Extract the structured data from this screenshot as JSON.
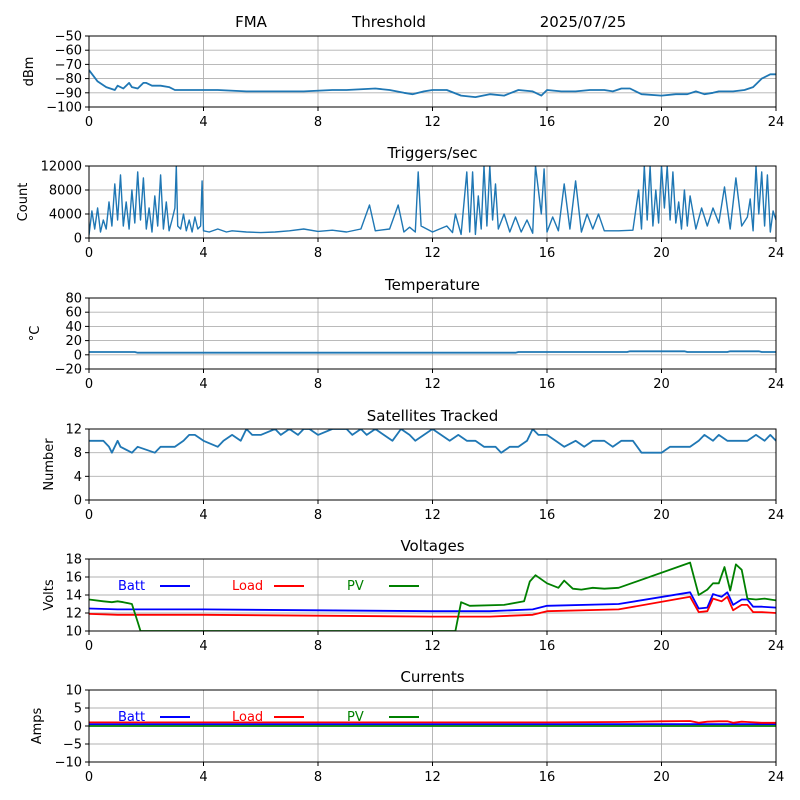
{
  "header": {
    "station": "FMA",
    "mode": "Threshold",
    "date": "2025/07/25"
  },
  "colors": {
    "default": "#1f77b4",
    "batt": "#0000ff",
    "load": "#ff0000",
    "pv": "#008000",
    "grid": "#b0b0b0"
  },
  "chart_data": [
    {
      "type": "line",
      "title": "",
      "ylabel": "dBm",
      "xlim": [
        0,
        24
      ],
      "ylim": [
        -100,
        -50
      ],
      "xticks": [
        "0",
        "4",
        "8",
        "12",
        "16",
        "20",
        "24"
      ],
      "yticks": [
        "−100",
        "−90",
        "−80",
        "−70",
        "−60",
        "−50"
      ],
      "grid": true,
      "series": [
        {
          "color": "default",
          "x": [
            0,
            0.3,
            0.6,
            0.9,
            1.0,
            1.2,
            1.4,
            1.5,
            1.7,
            1.9,
            2.0,
            2.2,
            2.5,
            2.8,
            3.0,
            3.5,
            4.5,
            5.5,
            6.5,
            7.5,
            8.5,
            9.0,
            10.0,
            10.5,
            11.0,
            11.3,
            11.7,
            12.0,
            12.5,
            13.0,
            13.5,
            14.0,
            14.5,
            15.0,
            15.5,
            15.8,
            16.0,
            16.5,
            17.0,
            17.5,
            18.0,
            18.3,
            18.6,
            18.9,
            19.3,
            20.0,
            20.5,
            20.9,
            21.2,
            21.5,
            21.8,
            22.0,
            22.5,
            22.9,
            23.2,
            23.5,
            23.8,
            24.0
          ],
          "y": [
            -74,
            -82,
            -86,
            -88,
            -85,
            -87,
            -83,
            -86,
            -87,
            -83,
            -83,
            -85,
            -85,
            -86,
            -88,
            -88,
            -88,
            -89,
            -89,
            -89,
            -88,
            -88,
            -87,
            -88,
            -90,
            -91,
            -89,
            -88,
            -88,
            -92,
            -93,
            -91,
            -92,
            -88,
            -89,
            -92,
            -88,
            -89,
            -89,
            -88,
            -88,
            -89,
            -87,
            -87,
            -91,
            -92,
            -91,
            -91,
            -89,
            -91,
            -90,
            -89,
            -89,
            -88,
            -86,
            -80,
            -77,
            -77
          ]
        }
      ]
    },
    {
      "type": "line",
      "title": "Triggers/sec",
      "ylabel": "Count",
      "xlim": [
        0,
        24
      ],
      "ylim": [
        0,
        12000
      ],
      "xticks": [
        "0",
        "4",
        "8",
        "12",
        "16",
        "20",
        "24"
      ],
      "yticks": [
        "0",
        "4000",
        "8000",
        "12000"
      ],
      "grid": true,
      "series": [
        {
          "color": "default",
          "x": [
            0,
            0.1,
            0.2,
            0.3,
            0.4,
            0.5,
            0.6,
            0.7,
            0.8,
            0.9,
            1.0,
            1.1,
            1.2,
            1.3,
            1.4,
            1.5,
            1.6,
            1.7,
            1.8,
            1.9,
            2.0,
            2.1,
            2.2,
            2.3,
            2.4,
            2.5,
            2.6,
            2.7,
            2.8,
            2.9,
            3.0,
            3.05,
            3.1,
            3.2,
            3.3,
            3.4,
            3.5,
            3.6,
            3.7,
            3.8,
            3.9,
            3.95,
            4.0,
            4.2,
            4.5,
            4.8,
            5.0,
            5.5,
            6.0,
            6.5,
            7.0,
            7.5,
            8.0,
            8.5,
            9.0,
            9.5,
            9.8,
            10.0,
            10.5,
            10.8,
            11.0,
            11.2,
            11.4,
            11.5,
            11.6,
            11.8,
            12.0,
            12.5,
            12.7,
            12.8,
            13.0,
            13.2,
            13.3,
            13.4,
            13.5,
            13.6,
            13.7,
            13.8,
            13.9,
            14.0,
            14.1,
            14.2,
            14.3,
            14.5,
            14.7,
            14.9,
            15.1,
            15.3,
            15.5,
            15.6,
            15.8,
            15.9,
            16.0,
            16.2,
            16.4,
            16.6,
            16.8,
            17.0,
            17.2,
            17.4,
            17.6,
            17.8,
            18.0,
            18.5,
            19.0,
            19.2,
            19.3,
            19.4,
            19.5,
            19.6,
            19.7,
            19.8,
            19.9,
            20.0,
            20.1,
            20.2,
            20.3,
            20.4,
            20.5,
            20.6,
            20.7,
            20.8,
            20.9,
            21.0,
            21.2,
            21.4,
            21.6,
            21.8,
            22.0,
            22.2,
            22.4,
            22.6,
            22.8,
            23.0,
            23.1,
            23.2,
            23.3,
            23.4,
            23.5,
            23.6,
            23.7,
            23.8,
            23.9,
            24.0
          ],
          "y": [
            500,
            4500,
            1500,
            5000,
            1000,
            3000,
            1500,
            6000,
            2000,
            9000,
            3000,
            10500,
            2000,
            6000,
            1500,
            8000,
            2500,
            11000,
            3000,
            10000,
            1500,
            5000,
            1000,
            7000,
            2000,
            10500,
            1500,
            6000,
            1200,
            3000,
            5000,
            12000,
            2000,
            1500,
            4000,
            1200,
            3000,
            1000,
            3500,
            1500,
            2000,
            9500,
            1200,
            1000,
            1500,
            1000,
            1200,
            1000,
            900,
            1000,
            1200,
            1500,
            1100,
            1300,
            1000,
            1500,
            5500,
            1200,
            1500,
            5500,
            1000,
            1800,
            1000,
            11000,
            2000,
            1500,
            1000,
            2000,
            900,
            4000,
            600,
            11000,
            1000,
            11000,
            600,
            7000,
            1500,
            12000,
            2000,
            12000,
            3000,
            9000,
            1500,
            4000,
            1000,
            3500,
            1000,
            3000,
            800,
            12000,
            4000,
            11500,
            1000,
            3500,
            1200,
            9000,
            1500,
            9500,
            1000,
            4000,
            1500,
            4000,
            1200,
            1200,
            1300,
            8000,
            1500,
            12000,
            3000,
            12000,
            2000,
            8000,
            2500,
            12000,
            5000,
            12000,
            3000,
            11000,
            2500,
            6000,
            1500,
            8000,
            2000,
            7000,
            1500,
            5000,
            2000,
            5000,
            2500,
            8500,
            1500,
            10000,
            2000,
            3500,
            6500,
            1200,
            12000,
            4000,
            11000,
            2000,
            10500,
            1000,
            4500,
            3000
          ],
          "note": ""
        }
      ]
    },
    {
      "type": "line",
      "title": "Temperature",
      "ylabel": "°C",
      "xlim": [
        0,
        24
      ],
      "ylim": [
        -20,
        80
      ],
      "xticks": [
        "0",
        "4",
        "8",
        "12",
        "16",
        "20",
        "24"
      ],
      "yticks": [
        "−20",
        "0",
        "20",
        "40",
        "60",
        "80"
      ],
      "grid": true,
      "series": [
        {
          "color": "default",
          "x": [
            0,
            1.6,
            1.7,
            14.9,
            15.0,
            18.8,
            18.9,
            20.8,
            20.9,
            22.3,
            22.4,
            23.4,
            23.5,
            24.0
          ],
          "y": [
            4,
            4,
            3,
            3,
            4,
            4,
            5,
            5,
            4,
            4,
            5,
            5,
            4,
            4
          ]
        }
      ]
    },
    {
      "type": "line",
      "title": "Satellites Tracked",
      "ylabel": "Number",
      "xlim": [
        0,
        24
      ],
      "ylim": [
        0,
        12
      ],
      "xticks": [
        "0",
        "4",
        "8",
        "12",
        "16",
        "20",
        "24"
      ],
      "yticks": [
        "0",
        "4",
        "8",
        "12"
      ],
      "grid": true,
      "series": [
        {
          "color": "default",
          "x": [
            0,
            0.5,
            0.7,
            0.8,
            1.0,
            1.1,
            1.5,
            1.7,
            2.3,
            2.5,
            3.0,
            3.3,
            3.5,
            3.7,
            4.0,
            4.5,
            4.7,
            5.0,
            5.3,
            5.5,
            5.7,
            6.0,
            6.5,
            6.7,
            7.0,
            7.3,
            7.5,
            7.7,
            8.0,
            8.5,
            8.7,
            9.0,
            9.2,
            9.5,
            9.7,
            10.0,
            10.3,
            10.6,
            10.9,
            11.2,
            11.4,
            11.7,
            12.0,
            12.3,
            12.6,
            12.9,
            13.2,
            13.5,
            13.8,
            14.2,
            14.4,
            14.7,
            15.0,
            15.3,
            15.5,
            15.7,
            16.0,
            16.3,
            16.6,
            17.0,
            17.3,
            17.6,
            18.0,
            18.3,
            18.6,
            19.0,
            19.3,
            19.7,
            20.0,
            20.3,
            20.8,
            21.0,
            21.3,
            21.5,
            21.8,
            22.0,
            22.3,
            22.6,
            23.0,
            23.3,
            23.6,
            23.8,
            24.0
          ],
          "y": [
            10,
            10,
            9,
            8,
            10,
            9,
            8,
            9,
            8,
            9,
            9,
            10,
            11,
            11,
            10,
            9,
            10,
            11,
            10,
            12,
            11,
            11,
            12,
            11,
            12,
            11,
            12,
            12,
            11,
            12,
            12,
            12,
            11,
            12,
            11,
            12,
            11,
            10,
            12,
            11,
            10,
            11,
            12,
            11,
            10,
            11,
            10,
            10,
            9,
            9,
            8,
            9,
            9,
            10,
            12,
            11,
            11,
            10,
            9,
            10,
            9,
            10,
            10,
            9,
            10,
            10,
            8,
            8,
            8,
            9,
            9,
            9,
            10,
            11,
            10,
            11,
            10,
            10,
            10,
            11,
            10,
            11,
            10
          ]
        }
      ]
    },
    {
      "type": "line",
      "title": "Voltages",
      "ylabel": "Volts",
      "xlim": [
        0,
        24
      ],
      "ylim": [
        10,
        18
      ],
      "xticks": [
        "0",
        "4",
        "8",
        "12",
        "16",
        "20",
        "24"
      ],
      "yticks": [
        "10",
        "12",
        "14",
        "16",
        "18"
      ],
      "grid": true,
      "legend": [
        "Batt",
        "Load",
        "PV"
      ],
      "legend_placement": "top-left",
      "series": [
        {
          "name": "Batt",
          "color": "batt",
          "x": [
            0,
            1,
            4,
            8,
            12,
            14,
            15.5,
            16,
            18.5,
            21,
            21.3,
            21.6,
            21.8,
            22.1,
            22.3,
            22.5,
            22.8,
            23.0,
            23.2,
            23.5,
            24.0
          ],
          "y": [
            12.5,
            12.4,
            12.4,
            12.3,
            12.2,
            12.2,
            12.4,
            12.8,
            13.0,
            14.3,
            12.5,
            12.6,
            14.1,
            13.8,
            14.3,
            12.9,
            13.5,
            13.5,
            12.7,
            12.7,
            12.6
          ]
        },
        {
          "name": "Load",
          "color": "load",
          "x": [
            0,
            1,
            4,
            8,
            12,
            14,
            15.5,
            16,
            18.5,
            21,
            21.3,
            21.6,
            21.8,
            22.1,
            22.3,
            22.5,
            22.8,
            23.0,
            23.2,
            23.5,
            24.0
          ],
          "y": [
            11.9,
            11.8,
            11.8,
            11.7,
            11.6,
            11.6,
            11.8,
            12.2,
            12.4,
            13.8,
            12.1,
            12.2,
            13.6,
            13.3,
            13.8,
            12.3,
            12.9,
            12.9,
            12.1,
            12.1,
            12.0
          ]
        },
        {
          "name": "PV",
          "color": "pv",
          "x": [
            0,
            0.5,
            0.8,
            1.0,
            1.2,
            1.5,
            1.7,
            1.8,
            12.8,
            13.0,
            13.3,
            14.5,
            15.2,
            15.4,
            15.6,
            16.0,
            16.4,
            16.6,
            16.9,
            17.2,
            17.6,
            18.0,
            18.5,
            21.0,
            21.3,
            21.6,
            21.8,
            22.0,
            22.2,
            22.4,
            22.6,
            22.8,
            23.0,
            23.3,
            23.6,
            24.0
          ],
          "y": [
            13.5,
            13.3,
            13.2,
            13.3,
            13.2,
            13.0,
            11.0,
            10.0,
            10.0,
            13.2,
            12.8,
            12.9,
            13.3,
            15.5,
            16.2,
            15.3,
            14.8,
            15.6,
            14.7,
            14.6,
            14.8,
            14.7,
            14.8,
            17.6,
            14.0,
            14.6,
            15.3,
            15.3,
            17.1,
            14.5,
            17.4,
            16.8,
            13.6,
            13.5,
            13.6,
            13.4
          ]
        }
      ]
    },
    {
      "type": "line",
      "title": "Currents",
      "ylabel": "Amps",
      "xlim": [
        0,
        24
      ],
      "ylim": [
        -10,
        10
      ],
      "xticks": [
        "0",
        "4",
        "8",
        "12",
        "16",
        "20",
        "24"
      ],
      "yticks": [
        "−10",
        "−5",
        "0",
        "5",
        "10"
      ],
      "grid": true,
      "legend": [
        "Batt",
        "Load",
        "PV"
      ],
      "legend_placement": "top-left",
      "series": [
        {
          "name": "Batt",
          "color": "batt",
          "x": [
            0,
            24
          ],
          "y": [
            0.5,
            0.5
          ]
        },
        {
          "name": "Load",
          "color": "load",
          "x": [
            0,
            4,
            8,
            12,
            16,
            18.5,
            20,
            21,
            21.3,
            21.6,
            22,
            22.3,
            22.5,
            22.8,
            23,
            23.5,
            24
          ],
          "y": [
            1.0,
            1.0,
            1.0,
            1.0,
            1.0,
            1.1,
            1.3,
            1.4,
            0.9,
            1.2,
            1.3,
            1.3,
            0.9,
            1.2,
            1.1,
            0.9,
            0.9
          ]
        },
        {
          "name": "PV",
          "color": "pv",
          "x": [
            0,
            24
          ],
          "y": [
            0.0,
            0.0
          ]
        }
      ]
    }
  ]
}
